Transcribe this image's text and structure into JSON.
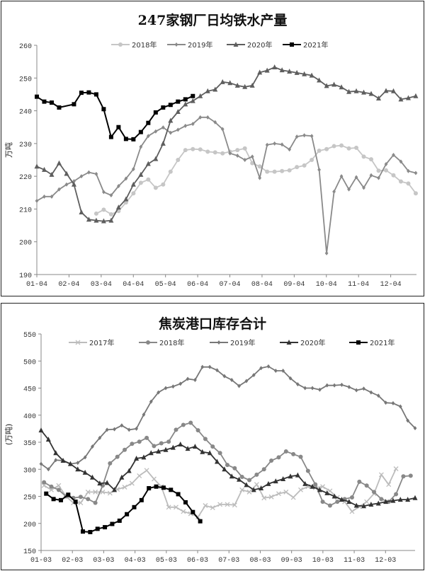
{
  "chart_data": [
    {
      "type": "line",
      "title": "247家钢厂日均铁水产量",
      "ylabel": "万吨",
      "ylim": [
        190,
        260
      ],
      "yticks": [
        190,
        200,
        210,
        220,
        230,
        240,
        250,
        260
      ],
      "x_unit": "week",
      "xlim": [
        0,
        51.1
      ],
      "xtick_labels": [
        "01-04",
        "02-04",
        "03-04",
        "04-04",
        "05-04",
        "06-04",
        "07-04",
        "08-04",
        "09-04",
        "10-04",
        "11-04",
        "12-04"
      ],
      "xtick_step_weeks": 4.33,
      "grid": false,
      "legend": "top",
      "series": [
        {
          "name": "2018年",
          "color": "#c6c6c6",
          "marker": "circle",
          "start_week": 8,
          "values": [
            208.6,
            209.8,
            208.4,
            209.4,
            212,
            214.8,
            218,
            219,
            216.5,
            217.5,
            221.4,
            225,
            228,
            228.3,
            228.2,
            227.5,
            227.3,
            227,
            227.5,
            228,
            228.5,
            224,
            223,
            221.4,
            221.4,
            221.6,
            221.8,
            222.8,
            223.3,
            225,
            227.8,
            228.3,
            229.2,
            229.4,
            228.5,
            228.7,
            226,
            225.2,
            221.7,
            221.8,
            220.3,
            218.4,
            217.8,
            214.8
          ]
        },
        {
          "name": "2019年",
          "color": "#8a8a8a",
          "marker": "diamond",
          "start_week": 0,
          "values": [
            212.5,
            213.8,
            213.8,
            216,
            217.5,
            218.5,
            220,
            221.2,
            220.7,
            215.2,
            214.2,
            217,
            219.3,
            222.2,
            229,
            232.3,
            233.7,
            234.9,
            233.3,
            234.2,
            235.4,
            236,
            238,
            238,
            236.5,
            234.4,
            227,
            226.3,
            225,
            226,
            219.5,
            229.6,
            230,
            229.7,
            228.2,
            232.1,
            232.5,
            232.3,
            222,
            196.5,
            215.3,
            220,
            216,
            219.7,
            216.5,
            220.3,
            219.5,
            223.7,
            226.5,
            224.5,
            221.6,
            221
          ]
        },
        {
          "name": "2020年",
          "color": "#5e5e5e",
          "marker": "triangle",
          "start_week": 0,
          "values": [
            223,
            222,
            220.5,
            224,
            220.8,
            217.5,
            209,
            206.8,
            206.5,
            206.3,
            206.5,
            210.5,
            213,
            217.5,
            220.5,
            223.8,
            225.3,
            230,
            237,
            239.7,
            242,
            243,
            244.5,
            246,
            246.5,
            248.8,
            248.5,
            247.7,
            247.3,
            247.7,
            251.7,
            252.3,
            253.3,
            252.4,
            252,
            251.6,
            251.2,
            250.8,
            249.3,
            247.6,
            248,
            247.2,
            245.8,
            246,
            245.6,
            245.2,
            243.8,
            246.1,
            246,
            243.5,
            243.9,
            244.5
          ]
        },
        {
          "name": "2021年",
          "color": "#000000",
          "marker": "square",
          "start_week": 0,
          "values": [
            244.3,
            242.8,
            242.5,
            241,
            null,
            242,
            245.5,
            245.6,
            245,
            240.5,
            232,
            235,
            231.4,
            231.3,
            233.5,
            236.3,
            239.5,
            241,
            241.8,
            242.8,
            243.5,
            244.5
          ]
        }
      ]
    },
    {
      "type": "line",
      "title": "焦炭港口库存合计",
      "ylabel": "(万吨)",
      "ylim": [
        150,
        550
      ],
      "yticks": [
        150,
        200,
        250,
        300,
        350,
        400,
        450,
        500,
        550
      ],
      "x_unit": "week",
      "xlim": [
        0,
        51
      ],
      "xtick_labels": [
        "01-03",
        "02-03",
        "03-03",
        "04-03",
        "05-03",
        "06-03",
        "07-03",
        "08-03",
        "09-03",
        "10-03",
        "11-03",
        "12-03"
      ],
      "xtick_step_weeks": 4.27,
      "grid": false,
      "legend": "top",
      "series": [
        {
          "name": "2017年",
          "color": "#bcbcbc",
          "marker": "x",
          "start_week": 0.4,
          "values": [
            270,
            262,
            270,
            250,
            238,
            238,
            258,
            258,
            258,
            256,
            263,
            267,
            274,
            288,
            298,
            282,
            268,
            230,
            230,
            222,
            218,
            212,
            233,
            229,
            235,
            235,
            234,
            262,
            258,
            272,
            247,
            249,
            255,
            258,
            248,
            262,
            268,
            266,
            268,
            260,
            248,
            240,
            222,
            231,
            240,
            255,
            290,
            272,
            301
          ]
        },
        {
          "name": "2018年",
          "color": "#888888",
          "marker": "circle",
          "start_week": 0.4,
          "values": [
            276,
            268,
            262,
            250,
            247,
            249,
            245,
            238,
            270,
            311,
            323,
            336,
            347,
            351,
            358,
            343,
            348,
            351,
            373,
            382,
            386,
            372,
            356,
            342,
            330,
            308,
            302,
            286,
            280,
            290,
            300,
            316,
            322,
            333,
            328,
            323,
            297,
            272,
            240,
            233,
            240,
            245,
            248,
            277,
            270,
            258,
            245,
            240,
            254,
            287,
            288
          ]
        },
        {
          "name": "2019年",
          "color": "#777777",
          "marker": "diamond",
          "start_week": 0,
          "values": [
            310,
            300,
            317,
            316,
            310,
            312,
            322,
            342,
            358,
            373,
            374,
            381,
            373,
            375,
            401,
            425,
            442,
            450,
            453,
            458,
            467,
            465,
            489,
            489,
            483,
            472,
            465,
            454,
            463,
            474,
            487,
            490,
            482,
            482,
            468,
            457,
            450,
            450,
            447,
            455,
            455,
            456,
            452,
            446,
            449,
            442,
            436,
            423,
            422,
            416,
            390,
            376
          ]
        },
        {
          "name": "2020年",
          "color": "#333333",
          "marker": "triangle",
          "start_week": 0,
          "values": [
            372,
            355,
            330,
            316,
            310,
            300,
            294,
            285,
            274,
            275,
            262,
            285,
            297,
            320,
            322,
            330,
            333,
            336,
            340,
            346,
            338,
            342,
            332,
            330,
            314,
            300,
            287,
            281,
            271,
            262,
            265,
            273,
            278,
            282,
            287,
            289,
            273,
            268,
            262,
            256,
            250,
            244,
            240,
            233,
            232,
            235,
            237,
            240,
            242,
            244,
            244,
            247
          ]
        },
        {
          "name": "2021年",
          "color": "#000000",
          "marker": "square",
          "start_week": 0.7,
          "values": [
            255,
            245,
            243,
            253,
            240,
            185,
            184,
            190,
            193,
            199,
            205,
            217,
            230,
            243,
            265,
            268,
            266,
            262,
            254,
            239,
            221,
            204
          ]
        }
      ]
    }
  ]
}
